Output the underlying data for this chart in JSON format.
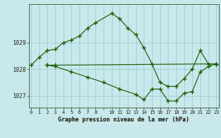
{
  "title": "Graphe pression niveau de la mer (hPa)",
  "bg": "#c8e8ec",
  "grid_color": "#a0ccd4",
  "lc": "#1a5c00",
  "xlim": [
    -0.3,
    23.3
  ],
  "ylim": [
    1026.55,
    1030.45
  ],
  "yticks": [
    1027,
    1028,
    1029
  ],
  "xtick_labels": [
    "0",
    "1",
    "2",
    "3",
    "4",
    "5",
    "6",
    "7",
    "8",
    "",
    "10",
    "11",
    "12",
    "13",
    "14",
    "15",
    "16",
    "17",
    "18",
    "19",
    "20",
    "21",
    "22",
    "23"
  ],
  "xtick_pos": [
    0,
    1,
    2,
    3,
    4,
    5,
    6,
    7,
    8,
    9,
    10,
    11,
    12,
    13,
    14,
    15,
    16,
    17,
    18,
    19,
    20,
    21,
    22,
    23
  ],
  "line1_x": [
    0,
    1,
    2,
    3,
    4,
    5,
    6,
    7,
    8,
    10,
    11,
    12,
    13,
    14,
    15,
    16,
    17,
    18,
    19,
    20,
    21,
    22,
    23
  ],
  "line1_y": [
    1028.15,
    1028.45,
    1028.7,
    1028.75,
    1029.0,
    1029.1,
    1029.25,
    1029.55,
    1029.75,
    1030.1,
    1029.9,
    1029.55,
    1029.3,
    1028.8,
    1028.2,
    1027.5,
    1027.35,
    1027.35,
    1027.65,
    1028.0,
    1028.7,
    1028.2,
    1028.2
  ],
  "line2_x": [
    2,
    3,
    23
  ],
  "line2_y": [
    1028.15,
    1028.15,
    1028.2
  ],
  "line3_x": [
    2,
    3,
    5,
    7,
    9,
    11,
    13,
    14,
    15,
    16,
    17,
    18,
    19,
    20,
    21,
    22,
    23
  ],
  "line3_y": [
    1028.15,
    1028.1,
    1027.9,
    1027.7,
    1027.5,
    1027.25,
    1027.05,
    1026.85,
    1027.25,
    1027.25,
    1026.8,
    1026.8,
    1027.1,
    1027.15,
    1027.9,
    1028.1,
    1028.2
  ]
}
